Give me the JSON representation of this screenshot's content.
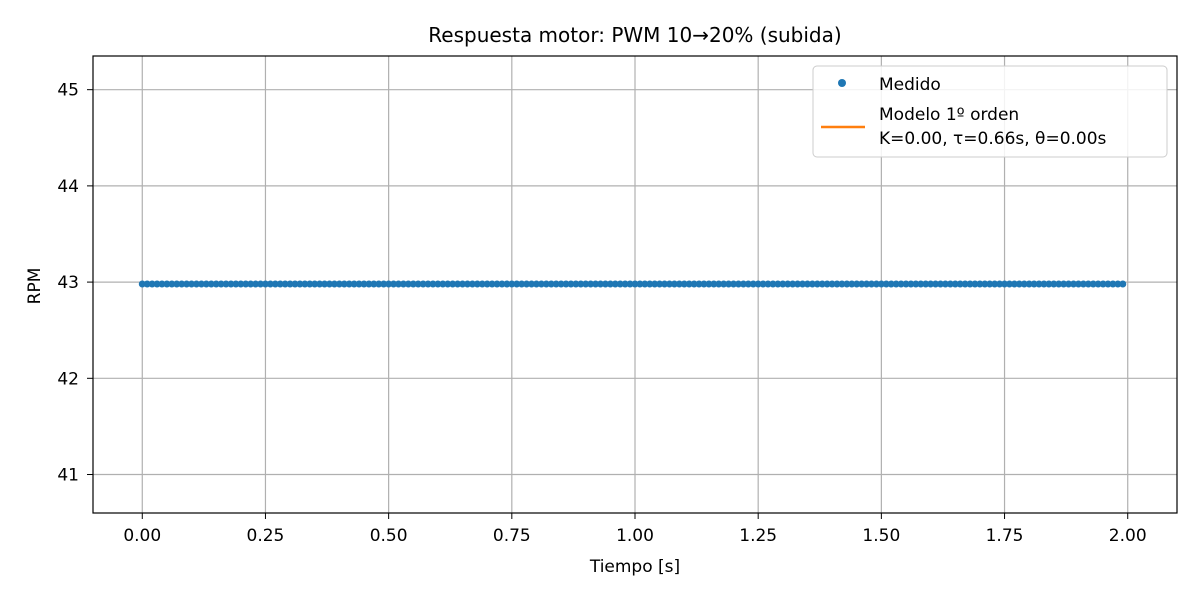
{
  "chart_data": {
    "type": "scatter",
    "title": "Respuesta motor: PWM 10→20% (subida)",
    "xlabel": "Tiempo [s]",
    "ylabel": "RPM",
    "xlim": [
      -0.1,
      2.1
    ],
    "ylim": [
      40.6,
      45.35
    ],
    "x_ticks": [
      0.0,
      0.25,
      0.5,
      0.75,
      1.0,
      1.25,
      1.5,
      1.75,
      2.0
    ],
    "x_tick_labels": [
      "0.00",
      "0.25",
      "0.50",
      "0.75",
      "1.00",
      "1.25",
      "1.50",
      "1.75",
      "2.00"
    ],
    "y_ticks": [
      41,
      42,
      43,
      44,
      45
    ],
    "y_tick_labels": [
      "41",
      "42",
      "43",
      "44",
      "45"
    ],
    "grid": true,
    "legend_position": "top-right",
    "colors": {
      "measured": "#1f77b4",
      "model": "#ff7f0e",
      "grid": "#b0b0b0"
    },
    "series": [
      {
        "name": "Medido",
        "kind": "markers",
        "color": "#1f77b4",
        "x_start": 0.0,
        "x_end": 1.99,
        "x_step": 0.01,
        "y": 42.98
      },
      {
        "name": "Modelo 1º orden",
        "name_line2": "K=0.00, τ=0.66s, θ=0.00s",
        "kind": "line",
        "color": "#ff7f0e",
        "x": [
          0.0,
          1.99
        ],
        "y": [
          42.98,
          42.98
        ]
      }
    ]
  }
}
